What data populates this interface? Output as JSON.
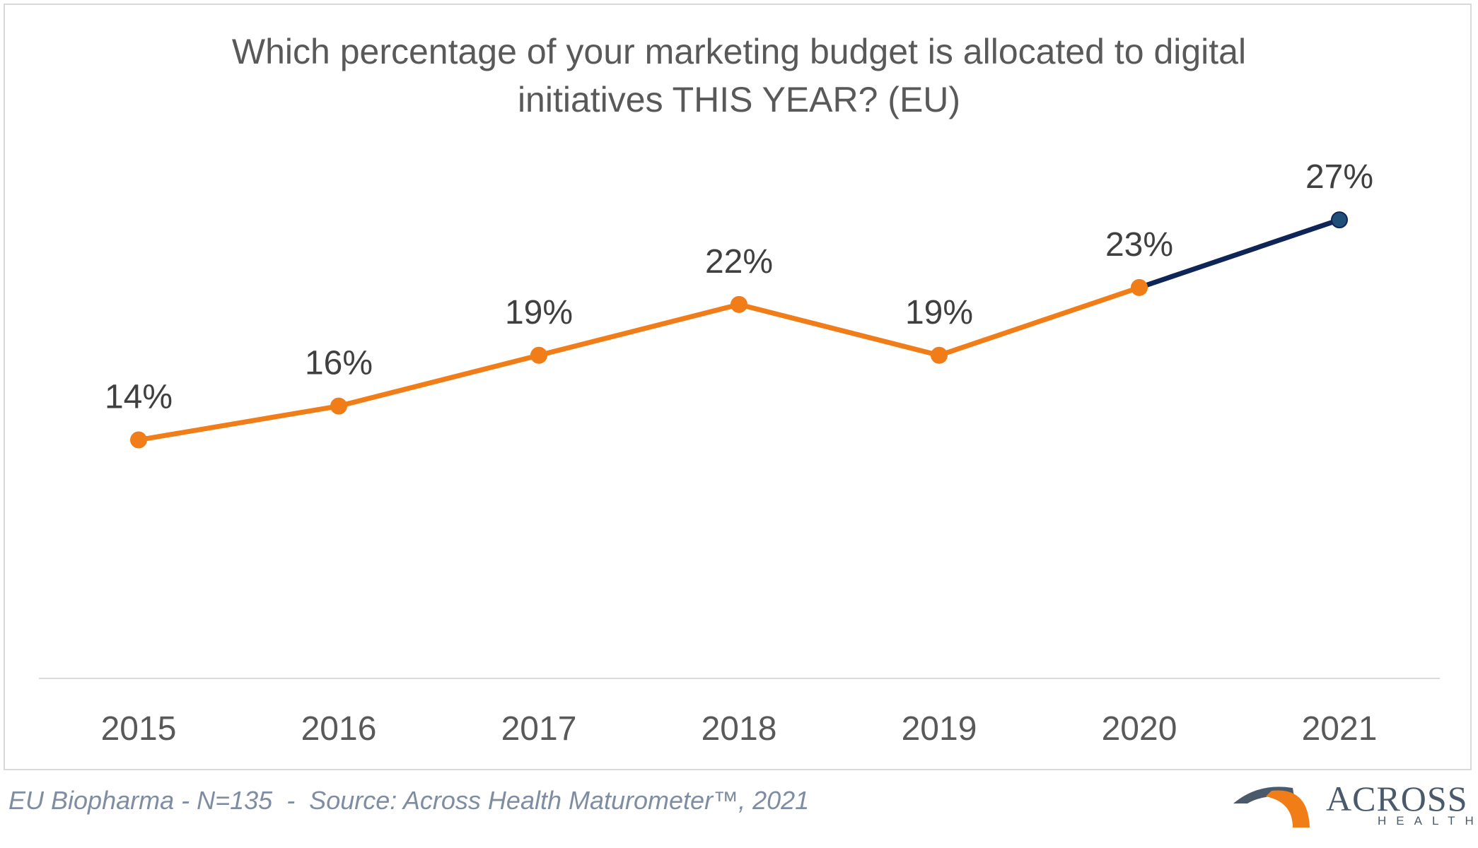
{
  "chart_data": {
    "type": "line",
    "title_lines": [
      "Which percentage of your marketing budget is allocated to digital",
      "initiatives THIS YEAR? (EU)"
    ],
    "categories": [
      "2015",
      "2016",
      "2017",
      "2018",
      "2019",
      "2020",
      "2021"
    ],
    "values": [
      14,
      16,
      19,
      22,
      19,
      23,
      27
    ],
    "data_labels": [
      "14%",
      "16%",
      "19%",
      "22%",
      "19%",
      "23%",
      "27%"
    ],
    "ylim": [
      0,
      30
    ],
    "grid": false,
    "colors": {
      "main": "#f07d18",
      "last_segment": "#0f2557",
      "last_point": "#1f4e79",
      "axis": "#d9d9d9"
    }
  },
  "footer": {
    "source": "EU Biopharma - N=135  -  Source: Across Health Maturometer™, 2021"
  },
  "logo": {
    "word": "ACROSS",
    "sub": "HEALTH",
    "colors": {
      "arch_dark": "#4a5a6a",
      "arch_orange": "#f07d18"
    }
  }
}
